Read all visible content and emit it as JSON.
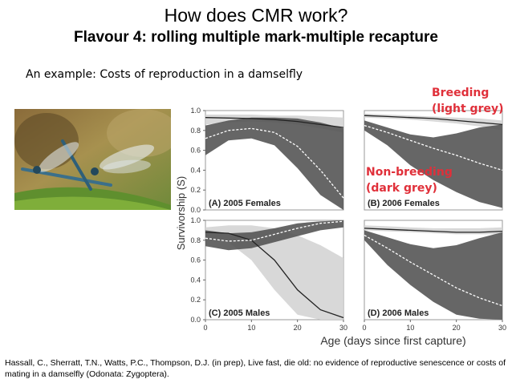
{
  "slide": {
    "title": "How does CMR work?",
    "subtitle": "Flavour 4: rolling multiple mark-multiple recapture",
    "example_text": "An example: Costs of reproduction in a damselfly",
    "callout_breeding": [
      "Breeding",
      "(light grey)"
    ],
    "callout_nonbreeding": [
      "Non-breeding",
      "(dark grey)"
    ],
    "citation": "Hassall, C., Sherratt, T.N., Watts, P.C., Thompson, D.J. (in prep), Live fast, die old: no evidence of reproductive senescence or costs of mating in a damselfly (Odonata: Zygoptera)."
  },
  "chart_data": {
    "type": "area",
    "ylabel": "Survivorship (S)",
    "xlabel": "Age (days since first capture)",
    "xlim": [
      0,
      30
    ],
    "ylim": [
      0,
      1.0
    ],
    "x_ticks": [
      0,
      10,
      20,
      30
    ],
    "y_ticks": [
      0.0,
      0.2,
      0.4,
      0.6,
      0.8,
      1.0
    ],
    "colors": {
      "breeding_band": "#d4d4d4",
      "nonbreeding_band": "#555555",
      "breeding_line": "#222222",
      "nonbreeding_line": "#ffffff"
    },
    "panels": [
      {
        "label": "(A) 2005 Females",
        "x": [
          0,
          5,
          10,
          15,
          20,
          25,
          30
        ],
        "breeding": {
          "mean": [
            0.93,
            0.925,
            0.92,
            0.91,
            0.89,
            0.86,
            0.83
          ],
          "lower": [
            0.86,
            0.88,
            0.89,
            0.88,
            0.86,
            0.82,
            0.78
          ],
          "upper": [
            0.96,
            0.96,
            0.96,
            0.95,
            0.95,
            0.94,
            0.93
          ]
        },
        "nonbreeding": {
          "mean": [
            0.72,
            0.8,
            0.82,
            0.78,
            0.64,
            0.4,
            0.12
          ],
          "lower": [
            0.55,
            0.7,
            0.72,
            0.65,
            0.42,
            0.15,
            0.0
          ],
          "upper": [
            0.85,
            0.9,
            0.93,
            0.93,
            0.92,
            0.88,
            0.82
          ]
        }
      },
      {
        "label": "(B) 2006 Females",
        "x": [
          0,
          5,
          10,
          15,
          20,
          25,
          30
        ],
        "breeding": {
          "mean": [
            0.95,
            0.94,
            0.93,
            0.92,
            0.9,
            0.88,
            0.86
          ],
          "lower": [
            0.93,
            0.92,
            0.91,
            0.89,
            0.87,
            0.84,
            0.8
          ],
          "upper": [
            0.97,
            0.96,
            0.95,
            0.94,
            0.93,
            0.92,
            0.9
          ]
        },
        "nonbreeding": {
          "mean": [
            0.85,
            0.78,
            0.7,
            0.62,
            0.55,
            0.47,
            0.4
          ],
          "lower": [
            0.8,
            0.65,
            0.45,
            0.3,
            0.18,
            0.08,
            0.02
          ],
          "upper": [
            0.9,
            0.83,
            0.76,
            0.73,
            0.77,
            0.83,
            0.86
          ]
        }
      },
      {
        "label": "(C) 2005 Males",
        "x": [
          0,
          5,
          10,
          15,
          20,
          25,
          30
        ],
        "breeding": {
          "mean": [
            0.88,
            0.87,
            0.8,
            0.6,
            0.3,
            0.1,
            0.02
          ],
          "lower": [
            0.82,
            0.78,
            0.6,
            0.3,
            0.05,
            0.0,
            0.0
          ],
          "upper": [
            0.93,
            0.95,
            0.95,
            0.92,
            0.85,
            0.75,
            0.62
          ]
        },
        "nonbreeding": {
          "mean": [
            0.82,
            0.79,
            0.8,
            0.86,
            0.92,
            0.97,
            0.99
          ],
          "lower": [
            0.74,
            0.7,
            0.72,
            0.78,
            0.84,
            0.9,
            0.93
          ],
          "upper": [
            0.9,
            0.87,
            0.88,
            0.92,
            0.97,
            0.99,
            1.0
          ]
        }
      },
      {
        "label": "(D) 2006 Males",
        "x": [
          0,
          5,
          10,
          15,
          20,
          25,
          30
        ],
        "breeding": {
          "mean": [
            0.92,
            0.91,
            0.9,
            0.89,
            0.88,
            0.88,
            0.89
          ],
          "lower": [
            0.9,
            0.89,
            0.88,
            0.87,
            0.86,
            0.86,
            0.86
          ],
          "upper": [
            0.95,
            0.94,
            0.93,
            0.92,
            0.92,
            0.92,
            0.93
          ]
        },
        "nonbreeding": {
          "mean": [
            0.85,
            0.72,
            0.58,
            0.45,
            0.32,
            0.22,
            0.14
          ],
          "lower": [
            0.8,
            0.55,
            0.35,
            0.18,
            0.05,
            0.01,
            0.0
          ],
          "upper": [
            0.9,
            0.83,
            0.76,
            0.72,
            0.75,
            0.82,
            0.88
          ]
        }
      }
    ]
  }
}
